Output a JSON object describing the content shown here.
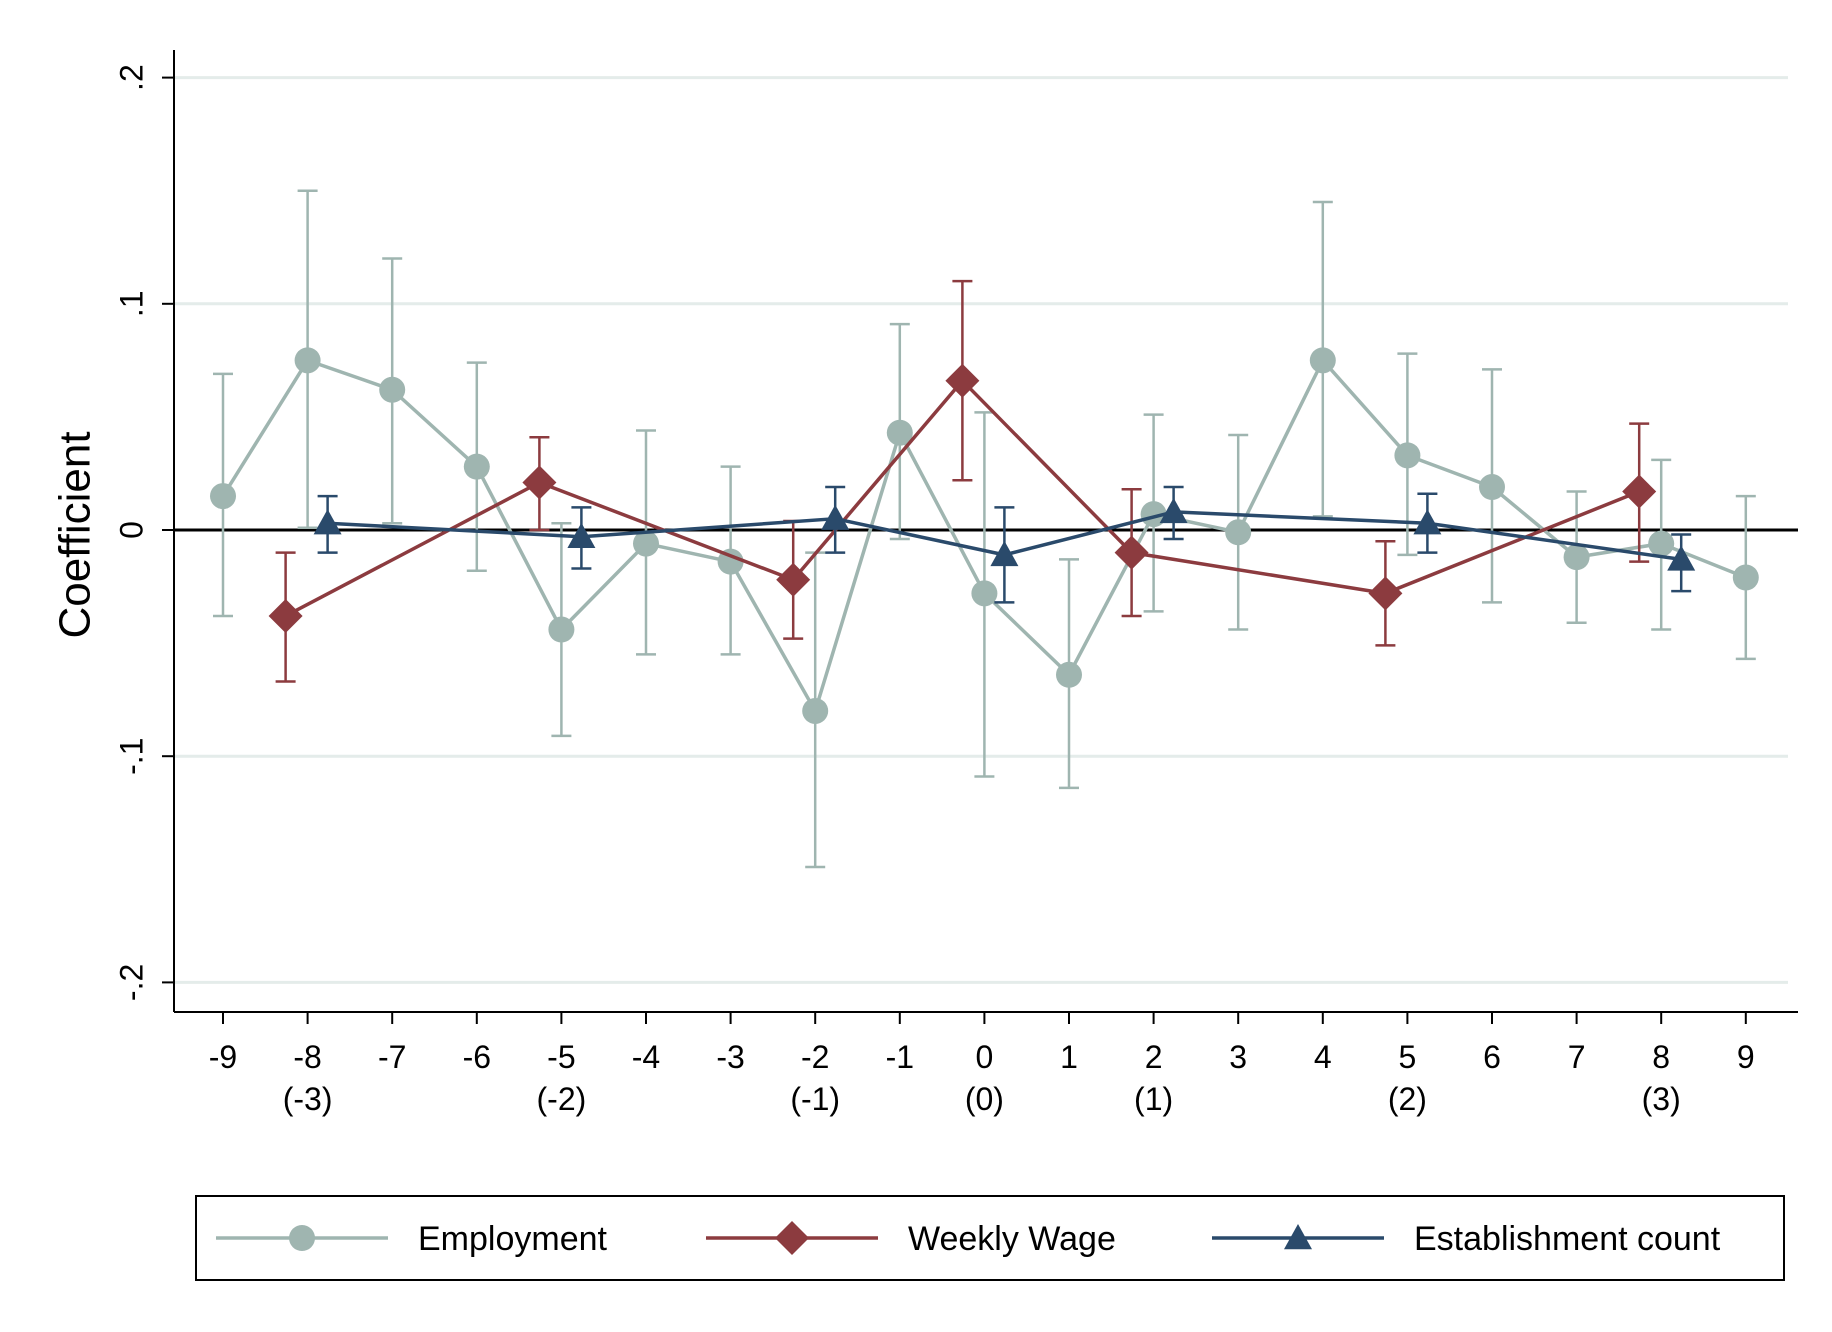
{
  "chart_data": {
    "type": "line",
    "ylabel": "Coefficient",
    "ylim": [
      -0.2,
      0.2
    ],
    "yticks": [
      {
        "value": -0.2,
        "label": "-.2"
      },
      {
        "value": -0.1,
        "label": "-.1"
      },
      {
        "value": 0,
        "label": "0"
      },
      {
        "value": 0.1,
        "label": ".1"
      },
      {
        "value": 0.2,
        "label": ".2"
      }
    ],
    "xlim": [
      -9,
      9
    ],
    "xticks": [
      {
        "value": -9,
        "label": "-9",
        "sub": ""
      },
      {
        "value": -8,
        "label": "-8",
        "sub": "(-3)"
      },
      {
        "value": -7,
        "label": "-7",
        "sub": ""
      },
      {
        "value": -6,
        "label": "-6",
        "sub": ""
      },
      {
        "value": -5,
        "label": "-5",
        "sub": "(-2)"
      },
      {
        "value": -4,
        "label": "-4",
        "sub": ""
      },
      {
        "value": -3,
        "label": "-3",
        "sub": ""
      },
      {
        "value": -2,
        "label": "-2",
        "sub": "(-1)"
      },
      {
        "value": -1,
        "label": "-1",
        "sub": ""
      },
      {
        "value": 0,
        "label": "0",
        "sub": "(0)"
      },
      {
        "value": 1,
        "label": "1",
        "sub": ""
      },
      {
        "value": 2,
        "label": "2",
        "sub": "(1)"
      },
      {
        "value": 3,
        "label": "3",
        "sub": ""
      },
      {
        "value": 4,
        "label": "4",
        "sub": ""
      },
      {
        "value": 5,
        "label": "5",
        "sub": "(2)"
      },
      {
        "value": 6,
        "label": "6",
        "sub": ""
      },
      {
        "value": 7,
        "label": "7",
        "sub": ""
      },
      {
        "value": 8,
        "label": "8",
        "sub": "(3)"
      },
      {
        "value": 9,
        "label": "9",
        "sub": ""
      }
    ],
    "grid": true,
    "zero_line": true,
    "legend_position": "bottom",
    "series": [
      {
        "name": "Employment",
        "color": "#9fb5b0",
        "marker": "circle",
        "points": [
          {
            "x": -9,
            "y": 0.015,
            "lo": -0.038,
            "hi": 0.069
          },
          {
            "x": -8,
            "y": 0.075,
            "lo": 0.001,
            "hi": 0.15
          },
          {
            "x": -7,
            "y": 0.062,
            "lo": 0.003,
            "hi": 0.12
          },
          {
            "x": -6,
            "y": 0.028,
            "lo": -0.018,
            "hi": 0.074
          },
          {
            "x": -5,
            "y": -0.044,
            "lo": -0.091,
            "hi": 0.003
          },
          {
            "x": -4,
            "y": -0.006,
            "lo": -0.055,
            "hi": 0.044
          },
          {
            "x": -3,
            "y": -0.014,
            "lo": -0.055,
            "hi": 0.028
          },
          {
            "x": -2,
            "y": -0.08,
            "lo": -0.149,
            "hi": -0.01
          },
          {
            "x": -1,
            "y": 0.043,
            "lo": -0.004,
            "hi": 0.091
          },
          {
            "x": 0,
            "y": -0.028,
            "lo": -0.109,
            "hi": 0.052
          },
          {
            "x": 1,
            "y": -0.064,
            "lo": -0.114,
            "hi": -0.013
          },
          {
            "x": 2,
            "y": 0.007,
            "lo": -0.036,
            "hi": 0.051
          },
          {
            "x": 3,
            "y": -0.001,
            "lo": -0.044,
            "hi": 0.042
          },
          {
            "x": 4,
            "y": 0.075,
            "lo": 0.006,
            "hi": 0.145
          },
          {
            "x": 5,
            "y": 0.033,
            "lo": -0.011,
            "hi": 0.078
          },
          {
            "x": 6,
            "y": 0.019,
            "lo": -0.032,
            "hi": 0.071
          },
          {
            "x": 7,
            "y": -0.012,
            "lo": -0.041,
            "hi": 0.017
          },
          {
            "x": 8,
            "y": -0.006,
            "lo": -0.044,
            "hi": 0.031
          },
          {
            "x": 9,
            "y": -0.021,
            "lo": -0.057,
            "hi": 0.015
          }
        ]
      },
      {
        "name": "Weekly Wage",
        "color": "#8c3b3f",
        "marker": "diamond",
        "points": [
          {
            "x": -8,
            "y": -0.038,
            "lo": -0.067,
            "hi": -0.01
          },
          {
            "x": -5,
            "y": 0.021,
            "lo": 0.0,
            "hi": 0.041
          },
          {
            "x": -2,
            "y": -0.022,
            "lo": -0.048,
            "hi": 0.004
          },
          {
            "x": 0,
            "y": 0.066,
            "lo": 0.022,
            "hi": 0.11
          },
          {
            "x": 2,
            "y": -0.01,
            "lo": -0.038,
            "hi": 0.018
          },
          {
            "x": 5,
            "y": -0.028,
            "lo": -0.051,
            "hi": -0.005
          },
          {
            "x": 8,
            "y": 0.017,
            "lo": -0.014,
            "hi": 0.047
          }
        ]
      },
      {
        "name": "Establishment count",
        "color": "#2a4a6b",
        "marker": "triangle",
        "points": [
          {
            "x": -8,
            "y": 0.003,
            "lo": -0.01,
            "hi": 0.015
          },
          {
            "x": -5,
            "y": -0.003,
            "lo": -0.017,
            "hi": 0.01
          },
          {
            "x": -2,
            "y": 0.005,
            "lo": -0.01,
            "hi": 0.019
          },
          {
            "x": 0,
            "y": -0.011,
            "lo": -0.032,
            "hi": 0.01
          },
          {
            "x": 2,
            "y": 0.008,
            "lo": -0.004,
            "hi": 0.019
          },
          {
            "x": 5,
            "y": 0.003,
            "lo": -0.01,
            "hi": 0.016
          },
          {
            "x": 8,
            "y": -0.013,
            "lo": -0.027,
            "hi": -0.002
          }
        ]
      }
    ]
  }
}
